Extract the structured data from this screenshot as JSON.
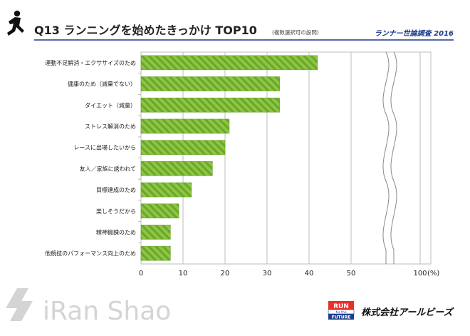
{
  "header": {
    "title": "Q13 ランニングを始めたきっかけ TOP10",
    "note": "(複数選択可の設問)",
    "survey": "ランナー世論調査 2016"
  },
  "footer": {
    "watermark": "iRan Shao",
    "badge_top": "RUN",
    "badge_mid": "for the",
    "badge_bottom": "FUTURE",
    "company": "株式会社アールビーズ"
  },
  "colors": {
    "bar_fill": "#8dc63f",
    "bar_stripe": "#6aa530",
    "title_text": "#222222",
    "survey_text": "#1a3c8c",
    "rule": "#1a3c8c",
    "badge_red": "#e8302a",
    "badge_blue": "#1e3f8f",
    "watermark": "#d4d4d4"
  },
  "chart_data": {
    "type": "bar",
    "orientation": "horizontal",
    "title": "Q13 ランニングを始めたきっかけ TOP10",
    "categories": [
      "運動不足解消・エクササイズのため",
      "健康のため（減量でない）",
      "ダイエット（減量）",
      "ストレス解消のため",
      "レースに出場したいから",
      "友人／家族に誘われて",
      "目標達成のため",
      "楽しそうだから",
      "精神鍛錬のため",
      "他競技のパフォーマンス向上のため"
    ],
    "values": [
      42,
      33,
      33,
      21,
      20,
      17,
      12,
      9,
      7,
      7
    ],
    "x_ticks": [
      "0",
      "10",
      "20",
      "30",
      "40",
      "50",
      "100"
    ],
    "x_unit": "(%)",
    "xlim": [
      0,
      100
    ],
    "axis_break": "after 50",
    "grid": true
  }
}
